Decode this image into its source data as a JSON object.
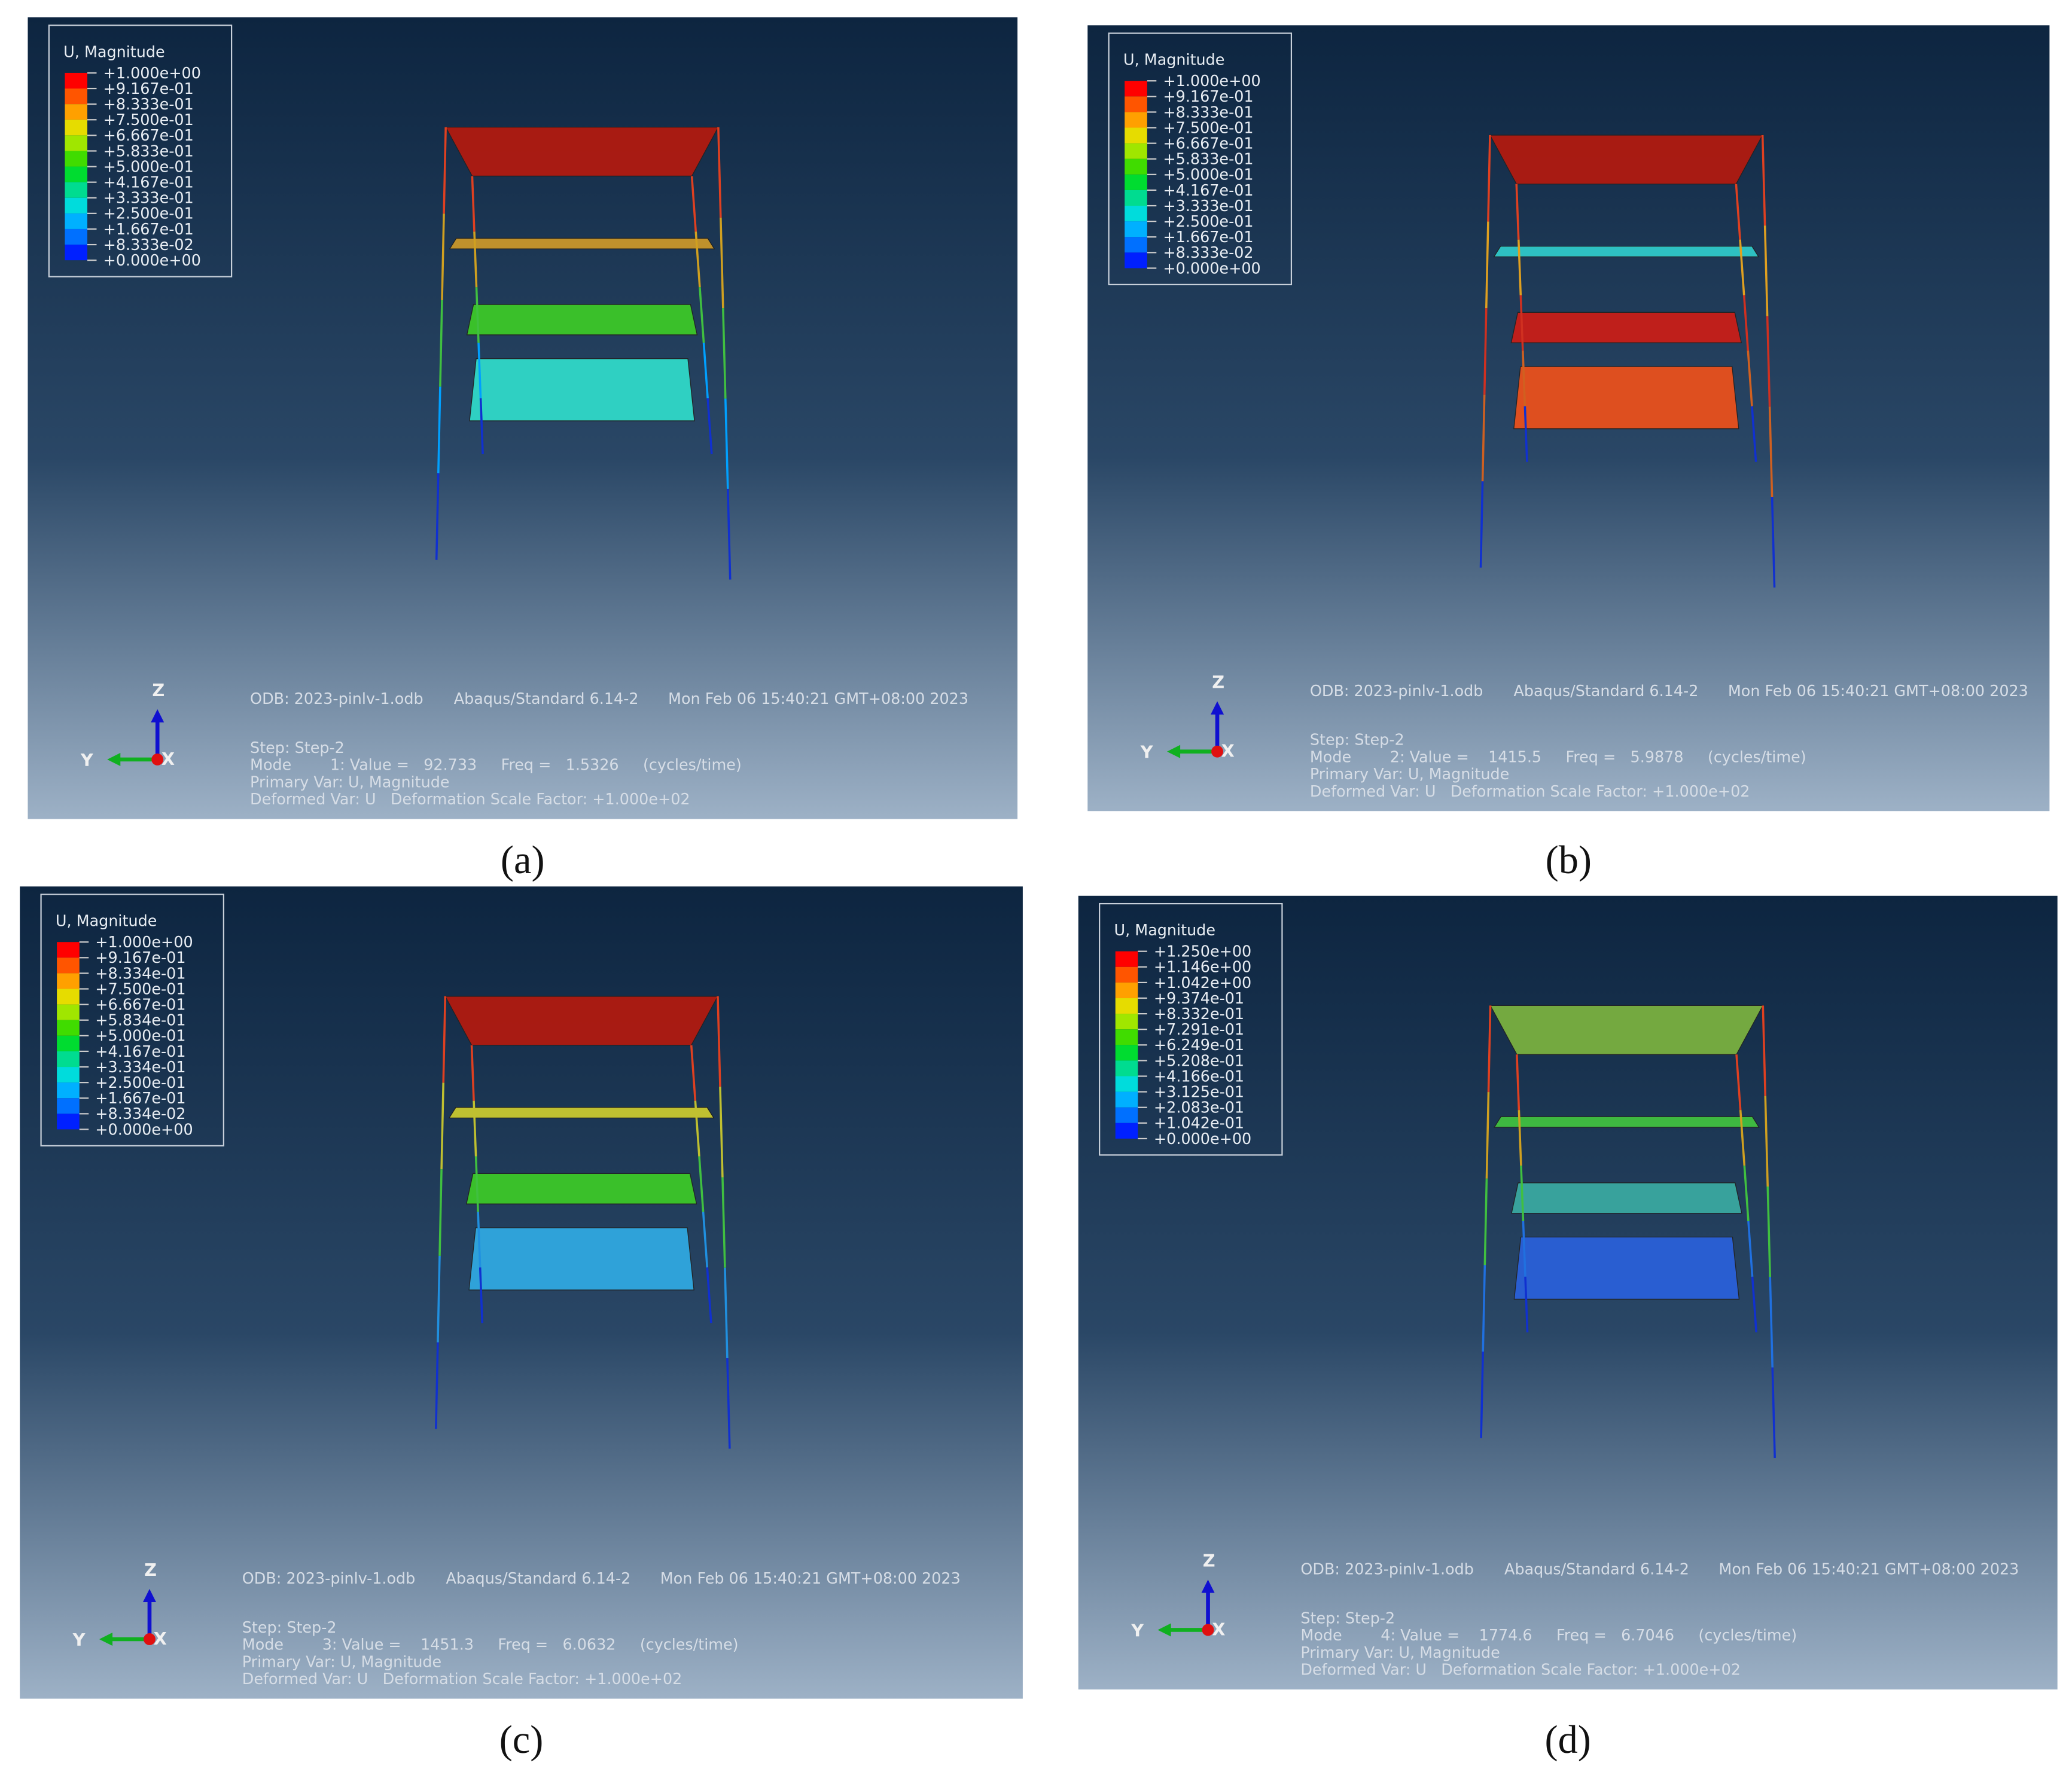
{
  "panels": [
    {
      "caption": "(a)",
      "legend": {
        "title": "U, Magnitude",
        "labels": [
          "+1.000e+00",
          "+9.167e-01",
          "+8.333e-01",
          "+7.500e-01",
          "+6.667e-01",
          "+5.833e-01",
          "+5.000e-01",
          "+4.167e-01",
          "+3.333e-01",
          "+2.500e-01",
          "+1.667e-01",
          "+8.333e-02",
          "+0.000e+00"
        ]
      },
      "info": {
        "odb": "ODB: 2023-pinlv-1.odb",
        "solver": "Abaqus/Standard 6.14-2",
        "date": "Mon Feb 06 15:40:21 GMT+08:00 2023",
        "step": "Step: Step-2",
        "mode": "Mode        1: Value =   92.733     Freq =   1.5326     (cycles/time)",
        "primary": "Primary Var: U, Magnitude",
        "deformed": "Deformed Var: U   Deformation Scale Factor: +1.000e+02"
      },
      "axes": {
        "z": "Z",
        "y": "Y",
        "x": "X"
      }
    },
    {
      "caption": "(b)",
      "legend": {
        "title": "U, Magnitude",
        "labels": [
          "+1.000e+00",
          "+9.167e-01",
          "+8.333e-01",
          "+7.500e-01",
          "+6.667e-01",
          "+5.833e-01",
          "+5.000e-01",
          "+4.167e-01",
          "+3.333e-01",
          "+2.500e-01",
          "+1.667e-01",
          "+8.333e-02",
          "+0.000e+00"
        ]
      },
      "info": {
        "odb": "ODB: 2023-pinlv-1.odb",
        "solver": "Abaqus/Standard 6.14-2",
        "date": "Mon Feb 06 15:40:21 GMT+08:00 2023",
        "step": "Step: Step-2",
        "mode": "Mode        2: Value =    1415.5     Freq =   5.9878     (cycles/time)",
        "primary": "Primary Var: U, Magnitude",
        "deformed": "Deformed Var: U   Deformation Scale Factor: +1.000e+02"
      },
      "axes": {
        "z": "Z",
        "y": "Y",
        "x": "X"
      }
    },
    {
      "caption": "(c)",
      "legend": {
        "title": "U, Magnitude",
        "labels": [
          "+1.000e+00",
          "+9.167e-01",
          "+8.334e-01",
          "+7.500e-01",
          "+6.667e-01",
          "+5.834e-01",
          "+5.000e-01",
          "+4.167e-01",
          "+3.334e-01",
          "+2.500e-01",
          "+1.667e-01",
          "+8.334e-02",
          "+0.000e+00"
        ]
      },
      "info": {
        "odb": "ODB: 2023-pinlv-1.odb",
        "solver": "Abaqus/Standard 6.14-2",
        "date": "Mon Feb 06 15:40:21 GMT+08:00 2023",
        "step": "Step: Step-2",
        "mode": "Mode        3: Value =    1451.3     Freq =   6.0632     (cycles/time)",
        "primary": "Primary Var: U, Magnitude",
        "deformed": "Deformed Var: U   Deformation Scale Factor: +1.000e+02"
      },
      "axes": {
        "z": "Z",
        "y": "Y",
        "x": "X"
      }
    },
    {
      "caption": "(d)",
      "legend": {
        "title": "U, Magnitude",
        "labels": [
          "+1.250e+00",
          "+1.146e+00",
          "+1.042e+00",
          "+9.374e-01",
          "+8.332e-01",
          "+7.291e-01",
          "+6.249e-01",
          "+5.208e-01",
          "+4.166e-01",
          "+3.125e-01",
          "+2.083e-01",
          "+1.042e-01",
          "+0.000e+00"
        ]
      },
      "info": {
        "odb": "ODB: 2023-pinlv-1.odb",
        "solver": "Abaqus/Standard 6.14-2",
        "date": "Mon Feb 06 15:40:21 GMT+08:00 2023",
        "step": "Step: Step-2",
        "mode": "Mode        4: Value =    1774.6     Freq =   6.7046     (cycles/time)",
        "primary": "Primary Var: U, Magnitude",
        "deformed": "Deformed Var: U   Deformation Scale Factor: +1.000e+02"
      },
      "axes": {
        "z": "Z",
        "y": "Y",
        "x": "X"
      }
    }
  ]
}
